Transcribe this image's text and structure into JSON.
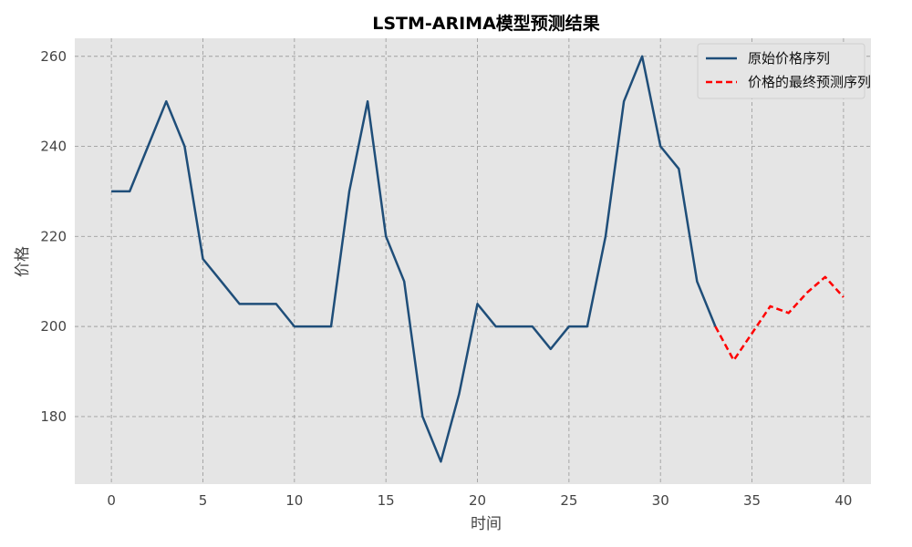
{
  "chart_data": {
    "type": "line",
    "title": "LSTM-ARIMA模型预测结果",
    "xlabel": "时间",
    "ylabel": "价格",
    "xlim": [
      -2,
      41.5
    ],
    "ylim": [
      165,
      264
    ],
    "xticks": [
      0,
      5,
      10,
      15,
      20,
      25,
      30,
      35,
      40
    ],
    "yticks": [
      180,
      200,
      220,
      240,
      260
    ],
    "grid": true,
    "legend_position": "top-right",
    "series": [
      {
        "name": "原始价格序列",
        "color": "#1f4e79",
        "style": "solid",
        "x": [
          0,
          1,
          2,
          3,
          4,
          5,
          6,
          7,
          8,
          9,
          10,
          11,
          12,
          13,
          14,
          15,
          16,
          17,
          18,
          19,
          20,
          21,
          22,
          23,
          24,
          25,
          26,
          27,
          28,
          29,
          30,
          31,
          32,
          33
        ],
        "y": [
          230,
          230,
          240,
          250,
          240,
          215,
          210,
          205,
          205,
          205,
          200,
          200,
          200,
          230,
          250,
          220,
          210,
          180,
          170,
          185,
          205,
          200,
          200,
          200,
          195,
          200,
          200,
          220,
          250,
          260,
          240,
          235,
          210,
          200
        ]
      },
      {
        "name": "价格的最终预测序列",
        "color": "#ff0000",
        "style": "dashed",
        "x": [
          33,
          34,
          35,
          36,
          37,
          38,
          39,
          40
        ],
        "y": [
          200,
          192.5,
          198.5,
          204.5,
          203,
          207.5,
          211,
          206.5
        ]
      }
    ]
  }
}
